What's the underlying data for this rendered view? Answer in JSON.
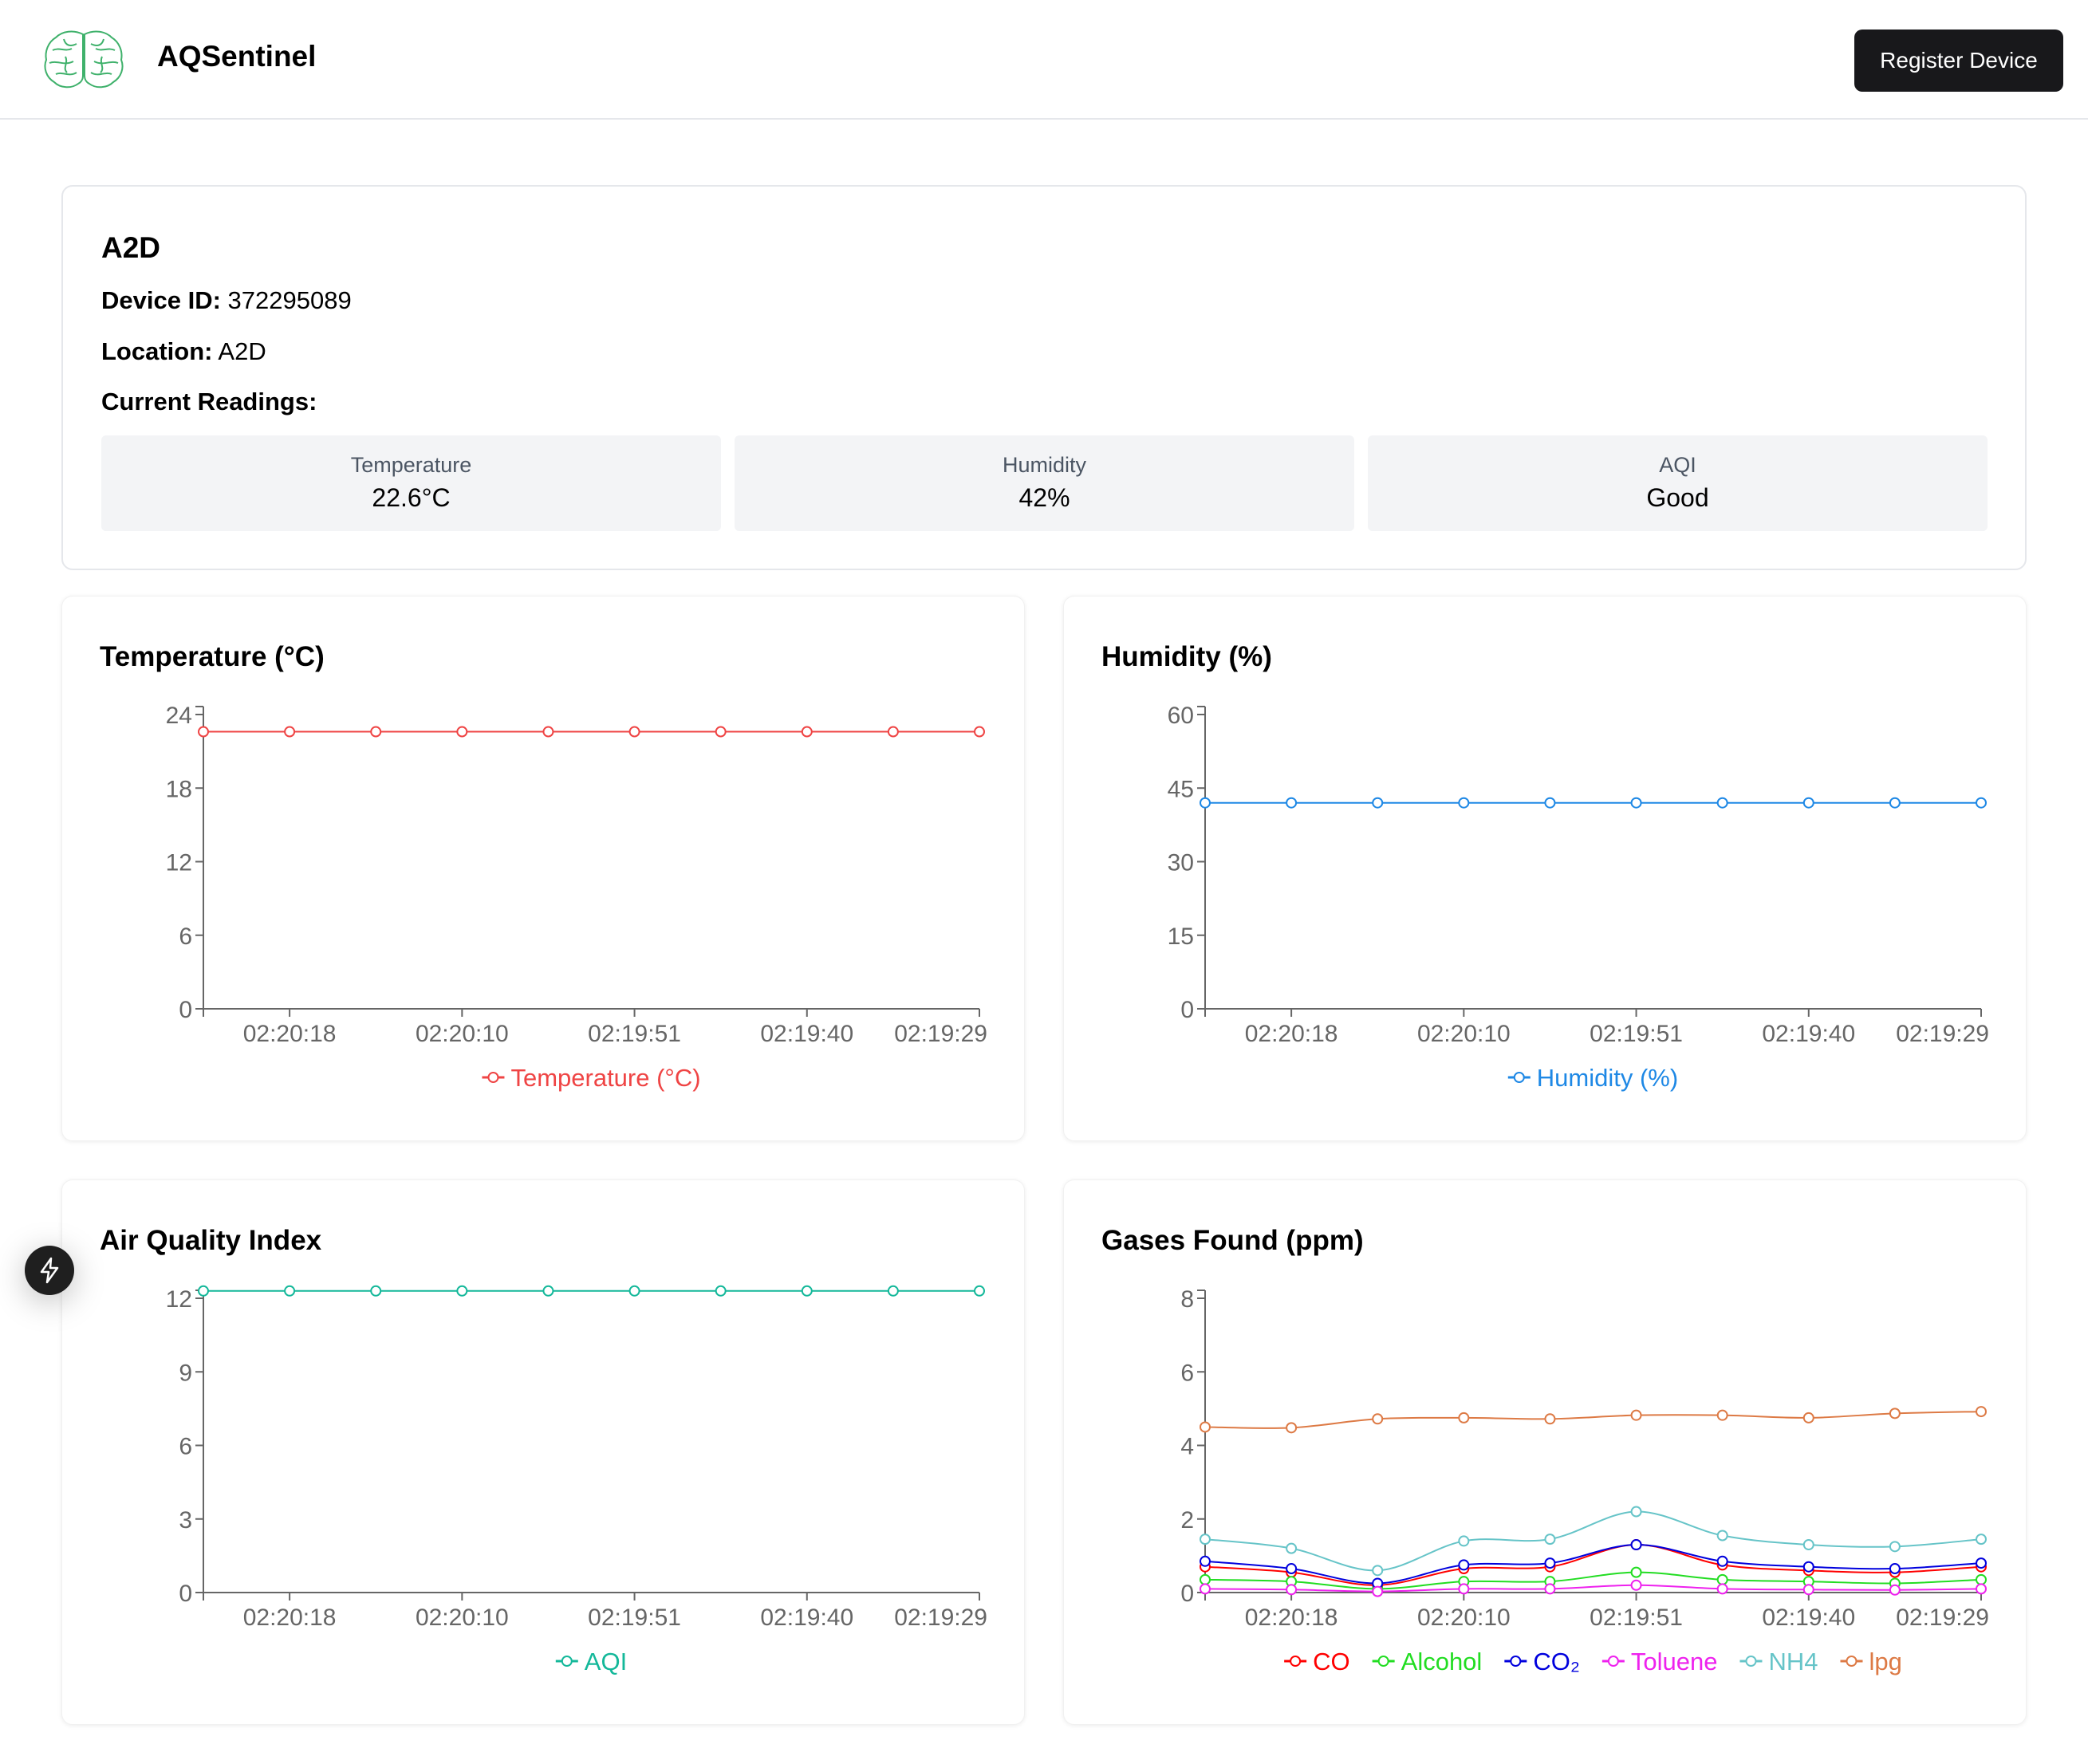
{
  "header": {
    "brand": "AQSentinel",
    "register_label": "Register Device"
  },
  "device": {
    "name": "A2D",
    "id_label": "Device ID:",
    "id_value": "372295089",
    "location_label": "Location:",
    "location_value": "A2D",
    "readings_label": "Current Readings:",
    "readings": [
      {
        "label": "Temperature",
        "value": "22.6°C"
      },
      {
        "label": "Humidity",
        "value": "42%"
      },
      {
        "label": "AQI",
        "value": "Good"
      }
    ]
  },
  "colors": {
    "temperature": "#ef4444",
    "humidity": "#1e88e5",
    "aqi": "#14b89a",
    "CO": "#ff0000",
    "Alcohol": "#22dd22",
    "CO2": "#0000dd",
    "Toluene": "#ee22ee",
    "NH4": "#66c4c8",
    "lpg": "#dd7a45"
  },
  "chart_data": [
    {
      "type": "line",
      "title": "Temperature (°C)",
      "x_ticks": [
        "02:20:18",
        "02:20:10",
        "02:19:51",
        "02:19:40",
        "02:19:29"
      ],
      "y_ticks": [
        "0",
        "6",
        "12",
        "18",
        "24"
      ],
      "ylim": [
        0,
        24
      ],
      "points": 10,
      "series": [
        {
          "name": "Temperature (°C)",
          "color_key": "temperature",
          "values": [
            22.6,
            22.6,
            22.6,
            22.6,
            22.6,
            22.6,
            22.6,
            22.6,
            22.6,
            22.6
          ]
        }
      ]
    },
    {
      "type": "line",
      "title": "Humidity (%)",
      "x_ticks": [
        "02:20:18",
        "02:20:10",
        "02:19:51",
        "02:19:40",
        "02:19:29"
      ],
      "y_ticks": [
        "0",
        "15",
        "30",
        "45",
        "60"
      ],
      "ylim": [
        0,
        60
      ],
      "points": 10,
      "series": [
        {
          "name": "Humidity (%)",
          "color_key": "humidity",
          "values": [
            42,
            42,
            42,
            42,
            42,
            42,
            42,
            42,
            42,
            42
          ]
        }
      ]
    },
    {
      "type": "line",
      "title": "Air Quality Index",
      "x_ticks": [
        "02:20:18",
        "02:20:10",
        "02:19:51",
        "02:19:40",
        "02:19:29"
      ],
      "y_ticks": [
        "0",
        "3",
        "6",
        "9",
        "12"
      ],
      "ylim": [
        0,
        12
      ],
      "points": 10,
      "series": [
        {
          "name": "AQI",
          "color_key": "aqi",
          "values": [
            12.3,
            12.3,
            12.3,
            12.3,
            12.3,
            12.3,
            12.3,
            12.3,
            12.3,
            12.3
          ]
        }
      ]
    },
    {
      "type": "line",
      "title": "Gases Found (ppm)",
      "x_ticks": [
        "02:20:18",
        "02:20:10",
        "02:19:51",
        "02:19:40",
        "02:19:29"
      ],
      "y_ticks": [
        "0",
        "2",
        "4",
        "6",
        "8"
      ],
      "ylim": [
        0,
        8
      ],
      "points": 10,
      "series": [
        {
          "name": "CO",
          "color_key": "CO",
          "values": [
            0.7,
            0.55,
            0.2,
            0.65,
            0.7,
            1.3,
            0.75,
            0.6,
            0.55,
            0.7
          ]
        },
        {
          "name": "Alcohol",
          "color_key": "Alcohol",
          "values": [
            0.35,
            0.3,
            0.1,
            0.3,
            0.3,
            0.55,
            0.35,
            0.3,
            0.25,
            0.35
          ]
        },
        {
          "name": "CO₂",
          "color_key": "CO2",
          "values": [
            0.85,
            0.65,
            0.25,
            0.75,
            0.8,
            1.3,
            0.85,
            0.7,
            0.65,
            0.8
          ]
        },
        {
          "name": "Toluene",
          "color_key": "Toluene",
          "values": [
            0.1,
            0.08,
            0.03,
            0.1,
            0.1,
            0.2,
            0.1,
            0.08,
            0.07,
            0.1
          ]
        },
        {
          "name": "NH4",
          "color_key": "NH4",
          "values": [
            1.45,
            1.2,
            0.6,
            1.4,
            1.45,
            2.2,
            1.55,
            1.3,
            1.25,
            1.45
          ]
        },
        {
          "name": "lpg",
          "color_key": "lpg",
          "values": [
            4.5,
            4.48,
            4.72,
            4.75,
            4.72,
            4.82,
            4.82,
            4.75,
            4.87,
            4.92
          ]
        }
      ]
    }
  ]
}
